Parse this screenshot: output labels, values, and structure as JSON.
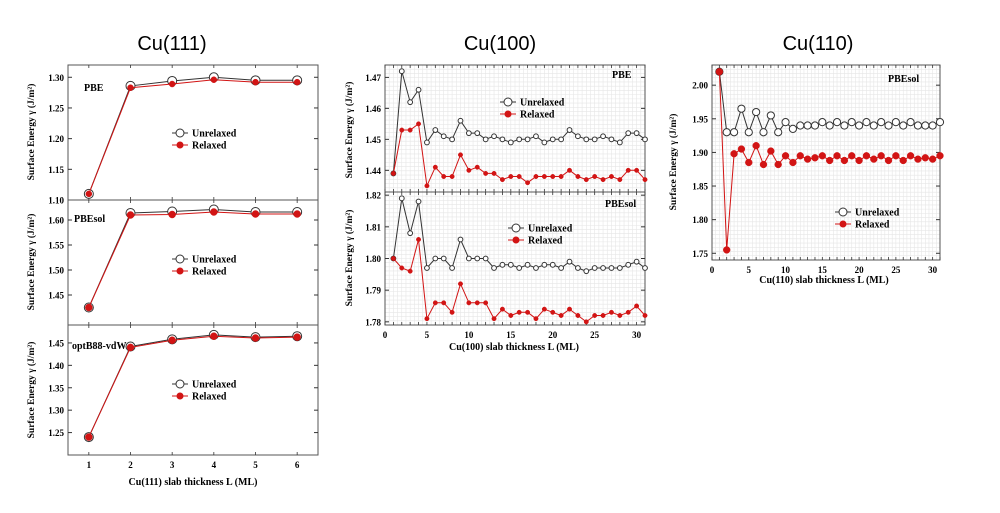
{
  "figure": {
    "group_titles": [
      "Cu(111)",
      "Cu(100)",
      "Cu(110)"
    ],
    "y_axis_label": "Surface Energy γ",
    "y_axis_unit": "(J/m²)"
  },
  "chart_data": [
    {
      "type": "line",
      "group": "Cu(111)",
      "title": "PBE",
      "xlabel": "",
      "ylabel": "Surface Energy γ (J/m²)",
      "xlim": [
        0.5,
        6.5
      ],
      "ylim": [
        1.1,
        1.32
      ],
      "xticks": [],
      "yticks": [
        1.1,
        1.15,
        1.2,
        1.25,
        1.3
      ],
      "ytick_labels": [
        "1.10",
        "1.15",
        "1.20",
        "1.25",
        "1.30"
      ],
      "grid": false,
      "legend": "center",
      "x": [
        1,
        2,
        3,
        4,
        5,
        6
      ],
      "series": [
        {
          "name": "Unrelaxed",
          "color": "#333333",
          "marker": "open",
          "values": [
            1.11,
            1.286,
            1.294,
            1.3,
            1.295,
            1.295
          ]
        },
        {
          "name": "Relaxed",
          "color": "#d21414",
          "marker": "filled",
          "values": [
            1.11,
            1.283,
            1.289,
            1.296,
            1.292,
            1.292
          ]
        }
      ]
    },
    {
      "type": "line",
      "group": "Cu(111)",
      "title": "PBEsol",
      "xlabel": "",
      "ylabel": "Surface Energy γ (J/m²)",
      "xlim": [
        0.5,
        6.5
      ],
      "ylim": [
        1.39,
        1.64
      ],
      "xticks": [],
      "yticks": [
        1.45,
        1.5,
        1.55,
        1.6
      ],
      "ytick_labels": [
        "1.45",
        "1.50",
        "1.55",
        "1.60"
      ],
      "grid": false,
      "legend": "center",
      "x": [
        1,
        2,
        3,
        4,
        5,
        6
      ],
      "series": [
        {
          "name": "Unrelaxed",
          "color": "#333333",
          "marker": "open",
          "values": [
            1.425,
            1.614,
            1.617,
            1.621,
            1.616,
            1.616
          ]
        },
        {
          "name": "Relaxed",
          "color": "#d21414",
          "marker": "filled",
          "values": [
            1.425,
            1.61,
            1.611,
            1.616,
            1.612,
            1.612
          ]
        }
      ]
    },
    {
      "type": "line",
      "group": "Cu(111)",
      "title": "optB88-vdW",
      "xlabel": "Cu(111) slab thickness L (ML)",
      "ylabel": "Surface Energy γ (J/m²)",
      "xlim": [
        0.5,
        6.5
      ],
      "ylim": [
        1.2,
        1.49
      ],
      "xticks": [
        1,
        2,
        3,
        4,
        5,
        6
      ],
      "xtick_labels": [
        "1",
        "2",
        "3",
        "4",
        "5",
        "6"
      ],
      "yticks": [
        1.25,
        1.3,
        1.35,
        1.4,
        1.45
      ],
      "ytick_labels": [
        "1.25",
        "1.30",
        "1.35",
        "1.40",
        "1.45"
      ],
      "grid": false,
      "legend": "center",
      "x": [
        1,
        2,
        3,
        4,
        5,
        6
      ],
      "series": [
        {
          "name": "Unrelaxed",
          "color": "#333333",
          "marker": "open",
          "values": [
            1.24,
            1.442,
            1.458,
            1.468,
            1.463,
            1.465
          ]
        },
        {
          "name": "Relaxed",
          "color": "#d21414",
          "marker": "filled",
          "values": [
            1.24,
            1.44,
            1.456,
            1.465,
            1.461,
            1.463
          ]
        }
      ]
    },
    {
      "type": "line",
      "group": "Cu(100)",
      "title": "PBE",
      "xlabel": "",
      "ylabel": "Surface Energy γ (J/m²)",
      "xlim": [
        0,
        31
      ],
      "ylim": [
        1.433,
        1.474
      ],
      "xticks": [],
      "yticks": [
        1.44,
        1.45,
        1.46,
        1.47
      ],
      "ytick_labels": [
        "1.44",
        "1.45",
        "1.46",
        "1.47"
      ],
      "grid": true,
      "legend": "upper center",
      "x": [
        1,
        2,
        3,
        4,
        5,
        6,
        7,
        8,
        9,
        10,
        11,
        12,
        13,
        14,
        15,
        16,
        17,
        18,
        19,
        20,
        21,
        22,
        23,
        24,
        25,
        26,
        27,
        28,
        29,
        30,
        31
      ],
      "series": [
        {
          "name": "Unrelaxed",
          "color": "#333333",
          "marker": "open",
          "values": [
            1.439,
            1.472,
            1.462,
            1.466,
            1.449,
            1.453,
            1.451,
            1.45,
            1.456,
            1.452,
            1.452,
            1.45,
            1.451,
            1.45,
            1.449,
            1.45,
            1.45,
            1.451,
            1.449,
            1.45,
            1.45,
            1.453,
            1.451,
            1.45,
            1.45,
            1.451,
            1.45,
            1.449,
            1.452,
            1.452,
            1.45
          ]
        },
        {
          "name": "Relaxed",
          "color": "#d21414",
          "marker": "filled",
          "values": [
            1.439,
            1.453,
            1.453,
            1.455,
            1.435,
            1.441,
            1.438,
            1.438,
            1.445,
            1.44,
            1.441,
            1.439,
            1.439,
            1.437,
            1.438,
            1.438,
            1.436,
            1.438,
            1.438,
            1.438,
            1.438,
            1.44,
            1.438,
            1.437,
            1.438,
            1.437,
            1.438,
            1.437,
            1.44,
            1.44,
            1.437
          ]
        }
      ]
    },
    {
      "type": "line",
      "group": "Cu(100)",
      "title": "PBEsol",
      "xlabel": "Cu(100) slab thickness L (ML)",
      "ylabel": "Surface Energy γ (J/m²)",
      "xlim": [
        0,
        31
      ],
      "ylim": [
        1.779,
        1.821
      ],
      "xticks": [
        0,
        5,
        10,
        15,
        20,
        25,
        30
      ],
      "xtick_labels": [
        "0",
        "5",
        "10",
        "15",
        "20",
        "25",
        "30"
      ],
      "yticks": [
        1.78,
        1.79,
        1.8,
        1.81,
        1.82
      ],
      "ytick_labels": [
        "1.78",
        "1.79",
        "1.80",
        "1.81",
        "1.82"
      ],
      "grid": true,
      "legend": "upper center",
      "x": [
        1,
        2,
        3,
        4,
        5,
        6,
        7,
        8,
        9,
        10,
        11,
        12,
        13,
        14,
        15,
        16,
        17,
        18,
        19,
        20,
        21,
        22,
        23,
        24,
        25,
        26,
        27,
        28,
        29,
        30,
        31
      ],
      "series": [
        {
          "name": "Unrelaxed",
          "color": "#333333",
          "marker": "open",
          "values": [
            1.8,
            1.819,
            1.808,
            1.818,
            1.797,
            1.8,
            1.8,
            1.797,
            1.806,
            1.8,
            1.8,
            1.8,
            1.797,
            1.798,
            1.798,
            1.797,
            1.798,
            1.797,
            1.798,
            1.798,
            1.797,
            1.799,
            1.797,
            1.796,
            1.797,
            1.797,
            1.797,
            1.797,
            1.798,
            1.799,
            1.797
          ]
        },
        {
          "name": "Relaxed",
          "color": "#d21414",
          "marker": "filled",
          "values": [
            1.8,
            1.797,
            1.796,
            1.806,
            1.781,
            1.786,
            1.786,
            1.783,
            1.792,
            1.786,
            1.786,
            1.786,
            1.781,
            1.784,
            1.782,
            1.783,
            1.783,
            1.781,
            1.784,
            1.783,
            1.782,
            1.784,
            1.782,
            1.78,
            1.782,
            1.782,
            1.783,
            1.782,
            1.783,
            1.785,
            1.782
          ]
        }
      ]
    },
    {
      "type": "line",
      "group": "Cu(110)",
      "title": "PBEsol",
      "xlabel": "Cu(110) slab thickness L (ML)",
      "ylabel": "Surface Energy γ (J/m²)",
      "xlim": [
        0,
        31
      ],
      "ylim": [
        1.74,
        2.03
      ],
      "xticks": [
        0,
        5,
        10,
        15,
        20,
        25,
        30
      ],
      "xtick_labels": [
        "0",
        "5",
        "10",
        "15",
        "20",
        "25",
        "30"
      ],
      "yticks": [
        1.75,
        1.8,
        1.85,
        1.9,
        1.95,
        2.0
      ],
      "ytick_labels": [
        "1.75",
        "1.80",
        "1.85",
        "1.90",
        "1.95",
        "2.00"
      ],
      "grid": true,
      "legend": "center-right",
      "x": [
        1,
        2,
        3,
        4,
        5,
        6,
        7,
        8,
        9,
        10,
        11,
        12,
        13,
        14,
        15,
        16,
        17,
        18,
        19,
        20,
        21,
        22,
        23,
        24,
        25,
        26,
        27,
        28,
        29,
        30,
        31
      ],
      "series": [
        {
          "name": "Unrelaxed",
          "color": "#333333",
          "marker": "open",
          "values": [
            2.02,
            1.93,
            1.93,
            1.965,
            1.93,
            1.96,
            1.93,
            1.955,
            1.93,
            1.945,
            1.935,
            1.94,
            1.94,
            1.94,
            1.945,
            1.94,
            1.945,
            1.94,
            1.945,
            1.94,
            1.945,
            1.94,
            1.945,
            1.94,
            1.945,
            1.94,
            1.945,
            1.94,
            1.94,
            1.94,
            1.945
          ]
        },
        {
          "name": "Relaxed",
          "color": "#d21414",
          "marker": "filled",
          "values": [
            2.02,
            1.755,
            1.898,
            1.905,
            1.885,
            1.91,
            1.882,
            1.902,
            1.882,
            1.895,
            1.885,
            1.895,
            1.89,
            1.892,
            1.895,
            1.888,
            1.895,
            1.888,
            1.895,
            1.888,
            1.895,
            1.89,
            1.895,
            1.888,
            1.895,
            1.888,
            1.895,
            1.89,
            1.892,
            1.89,
            1.895
          ]
        }
      ]
    }
  ]
}
